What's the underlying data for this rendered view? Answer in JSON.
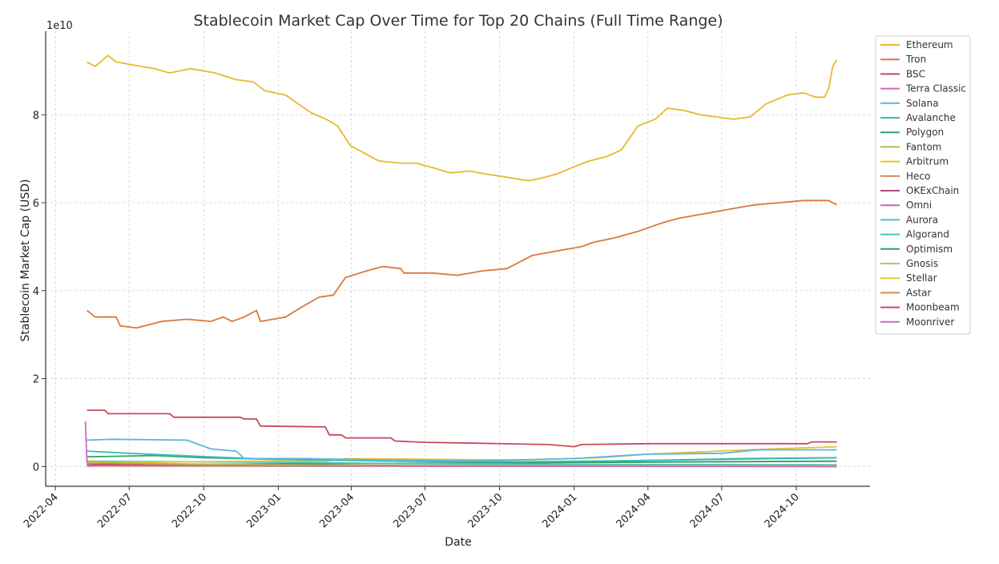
{
  "chart_data": {
    "type": "line",
    "title": "Stablecoin Market Cap Over Time for Top 20 Chains (Full Time Range)",
    "xlabel": "Date",
    "ylabel": "Stablecoin Market Cap (USD)",
    "y_offset_label": "1e10",
    "xlim": [
      "2022-03-20",
      "2024-12-31"
    ],
    "ylim": [
      -0.45,
      9.9
    ],
    "y_unit_multiplier": 10000000000.0,
    "x_ticks": [
      "2022-04",
      "2022-07",
      "2022-10",
      "2023-01",
      "2023-04",
      "2023-07",
      "2023-10",
      "2024-01",
      "2024-04",
      "2024-07",
      "2024-10"
    ],
    "y_ticks": [
      0,
      2,
      4,
      6,
      8
    ],
    "grid": true,
    "legend_position": "top-right",
    "series": [
      {
        "name": "Ethereum",
        "color": "#e8b92e",
        "points": [
          [
            "2022-05-10",
            9.2
          ],
          [
            "2022-05-20",
            9.1
          ],
          [
            "2022-06-05",
            9.35
          ],
          [
            "2022-06-15",
            9.2
          ],
          [
            "2022-07-01",
            9.15
          ],
          [
            "2022-08-01",
            9.05
          ],
          [
            "2022-08-20",
            8.95
          ],
          [
            "2022-09-15",
            9.05
          ],
          [
            "2022-10-15",
            8.95
          ],
          [
            "2022-11-10",
            8.8
          ],
          [
            "2022-12-01",
            8.75
          ],
          [
            "2022-12-15",
            8.55
          ],
          [
            "2023-01-10",
            8.45
          ],
          [
            "2023-02-10",
            8.05
          ],
          [
            "2023-03-01",
            7.9
          ],
          [
            "2023-03-15",
            7.75
          ],
          [
            "2023-03-31",
            7.3
          ],
          [
            "2023-04-15",
            7.15
          ],
          [
            "2023-05-05",
            6.95
          ],
          [
            "2023-05-31",
            6.9
          ],
          [
            "2023-06-20",
            6.9
          ],
          [
            "2023-07-10",
            6.8
          ],
          [
            "2023-08-01",
            6.68
          ],
          [
            "2023-08-25",
            6.72
          ],
          [
            "2023-09-15",
            6.65
          ],
          [
            "2023-10-10",
            6.58
          ],
          [
            "2023-11-05",
            6.5
          ],
          [
            "2023-11-20",
            6.55
          ],
          [
            "2023-12-10",
            6.65
          ],
          [
            "2024-01-05",
            6.85
          ],
          [
            "2024-01-20",
            6.95
          ],
          [
            "2024-02-10",
            7.05
          ],
          [
            "2024-02-28",
            7.2
          ],
          [
            "2024-03-20",
            7.75
          ],
          [
            "2024-04-10",
            7.9
          ],
          [
            "2024-04-25",
            8.15
          ],
          [
            "2024-05-15",
            8.1
          ],
          [
            "2024-06-05",
            8.0
          ],
          [
            "2024-06-25",
            7.95
          ],
          [
            "2024-07-15",
            7.9
          ],
          [
            "2024-08-05",
            7.95
          ],
          [
            "2024-08-25",
            8.25
          ],
          [
            "2024-09-20",
            8.45
          ],
          [
            "2024-10-10",
            8.5
          ],
          [
            "2024-10-25",
            8.4
          ],
          [
            "2024-11-05",
            8.4
          ],
          [
            "2024-11-10",
            8.6
          ],
          [
            "2024-11-15",
            9.1
          ],
          [
            "2024-11-20",
            9.25
          ]
        ]
      },
      {
        "name": "Tron",
        "color": "#d9783e",
        "points": [
          [
            "2022-05-10",
            3.55
          ],
          [
            "2022-05-20",
            3.4
          ],
          [
            "2022-06-15",
            3.4
          ],
          [
            "2022-06-20",
            3.2
          ],
          [
            "2022-07-10",
            3.15
          ],
          [
            "2022-08-10",
            3.3
          ],
          [
            "2022-09-10",
            3.35
          ],
          [
            "2022-10-10",
            3.3
          ],
          [
            "2022-10-25",
            3.4
          ],
          [
            "2022-11-05",
            3.3
          ],
          [
            "2022-11-20",
            3.4
          ],
          [
            "2022-12-05",
            3.55
          ],
          [
            "2022-12-10",
            3.3
          ],
          [
            "2023-01-10",
            3.4
          ],
          [
            "2023-02-01",
            3.65
          ],
          [
            "2023-02-20",
            3.85
          ],
          [
            "2023-03-10",
            3.9
          ],
          [
            "2023-03-25",
            4.3
          ],
          [
            "2023-04-20",
            4.45
          ],
          [
            "2023-05-10",
            4.55
          ],
          [
            "2023-06-01",
            4.5
          ],
          [
            "2023-06-05",
            4.4
          ],
          [
            "2023-07-10",
            4.4
          ],
          [
            "2023-08-10",
            4.35
          ],
          [
            "2023-09-10",
            4.45
          ],
          [
            "2023-10-10",
            4.5
          ],
          [
            "2023-11-10",
            4.8
          ],
          [
            "2023-12-10",
            4.9
          ],
          [
            "2024-01-10",
            5.0
          ],
          [
            "2024-01-25",
            5.1
          ],
          [
            "2024-02-20",
            5.2
          ],
          [
            "2024-03-20",
            5.35
          ],
          [
            "2024-04-20",
            5.55
          ],
          [
            "2024-05-10",
            5.65
          ],
          [
            "2024-06-10",
            5.75
          ],
          [
            "2024-07-10",
            5.85
          ],
          [
            "2024-08-10",
            5.95
          ],
          [
            "2024-09-10",
            6.0
          ],
          [
            "2024-10-10",
            6.05
          ],
          [
            "2024-11-10",
            6.05
          ],
          [
            "2024-11-20",
            5.95
          ]
        ]
      },
      {
        "name": "BSC",
        "color": "#c94a5a",
        "points": [
          [
            "2022-05-10",
            1.28
          ],
          [
            "2022-06-01",
            1.28
          ],
          [
            "2022-06-05",
            1.2
          ],
          [
            "2022-08-20",
            1.2
          ],
          [
            "2022-08-25",
            1.12
          ],
          [
            "2022-11-15",
            1.12
          ],
          [
            "2022-11-20",
            1.08
          ],
          [
            "2022-12-05",
            1.08
          ],
          [
            "2022-12-10",
            0.92
          ],
          [
            "2023-02-28",
            0.9
          ],
          [
            "2023-03-05",
            0.72
          ],
          [
            "2023-03-20",
            0.72
          ],
          [
            "2023-03-25",
            0.65
          ],
          [
            "2023-05-20",
            0.65
          ],
          [
            "2023-05-25",
            0.58
          ],
          [
            "2023-07-01",
            0.55
          ],
          [
            "2023-09-01",
            0.53
          ],
          [
            "2023-12-01",
            0.5
          ],
          [
            "2024-01-01",
            0.45
          ],
          [
            "2024-01-10",
            0.5
          ],
          [
            "2024-04-01",
            0.52
          ],
          [
            "2024-07-01",
            0.52
          ],
          [
            "2024-10-15",
            0.52
          ],
          [
            "2024-10-20",
            0.56
          ],
          [
            "2024-11-20",
            0.56
          ]
        ]
      },
      {
        "name": "Terra Classic",
        "color": "#d068c8",
        "points": [
          [
            "2022-05-08",
            1.02
          ],
          [
            "2022-05-09",
            0.55
          ],
          [
            "2022-05-10",
            0.1
          ],
          [
            "2022-05-15",
            0.02
          ],
          [
            "2024-11-20",
            0.0
          ]
        ]
      },
      {
        "name": "Solana",
        "color": "#58b8e0",
        "points": [
          [
            "2022-05-10",
            0.6
          ],
          [
            "2022-06-10",
            0.62
          ],
          [
            "2022-09-10",
            0.6
          ],
          [
            "2022-10-10",
            0.4
          ],
          [
            "2022-11-10",
            0.35
          ],
          [
            "2022-11-20",
            0.18
          ],
          [
            "2023-02-01",
            0.18
          ],
          [
            "2023-05-01",
            0.15
          ],
          [
            "2023-09-01",
            0.13
          ],
          [
            "2024-01-01",
            0.18
          ],
          [
            "2024-04-01",
            0.28
          ],
          [
            "2024-07-01",
            0.3
          ],
          [
            "2024-08-15",
            0.38
          ],
          [
            "2024-11-20",
            0.38
          ]
        ]
      },
      {
        "name": "Avalanche",
        "color": "#3cbcb4",
        "points": [
          [
            "2022-05-10",
            0.35
          ],
          [
            "2022-07-01",
            0.3
          ],
          [
            "2022-11-01",
            0.2
          ],
          [
            "2023-01-01",
            0.16
          ],
          [
            "2023-06-01",
            0.12
          ],
          [
            "2023-11-01",
            0.11
          ],
          [
            "2024-03-01",
            0.13
          ],
          [
            "2024-08-01",
            0.17
          ],
          [
            "2024-11-20",
            0.2
          ]
        ]
      },
      {
        "name": "Polygon",
        "color": "#2ea86c",
        "points": [
          [
            "2022-05-10",
            0.22
          ],
          [
            "2022-08-01",
            0.25
          ],
          [
            "2022-10-01",
            0.2
          ],
          [
            "2023-01-01",
            0.16
          ],
          [
            "2023-03-01",
            0.15
          ],
          [
            "2023-06-01",
            0.12
          ],
          [
            "2023-10-01",
            0.1
          ],
          [
            "2024-01-01",
            0.11
          ],
          [
            "2024-05-01",
            0.15
          ],
          [
            "2024-08-01",
            0.18
          ],
          [
            "2024-11-20",
            0.2
          ]
        ]
      },
      {
        "name": "Fantom",
        "color": "#a3c440",
        "points": [
          [
            "2022-05-10",
            0.12
          ],
          [
            "2022-07-01",
            0.08
          ],
          [
            "2022-10-01",
            0.05
          ],
          [
            "2023-03-01",
            0.03
          ],
          [
            "2024-11-20",
            0.02
          ]
        ]
      },
      {
        "name": "Arbitrum",
        "color": "#e8c22e",
        "points": [
          [
            "2022-05-10",
            0.1
          ],
          [
            "2022-08-01",
            0.1
          ],
          [
            "2022-12-01",
            0.12
          ],
          [
            "2023-03-01",
            0.12
          ],
          [
            "2023-03-25",
            0.18
          ],
          [
            "2023-08-01",
            0.16
          ],
          [
            "2023-11-01",
            0.15
          ],
          [
            "2024-02-01",
            0.2
          ],
          [
            "2024-04-01",
            0.28
          ],
          [
            "2024-08-01",
            0.38
          ],
          [
            "2024-11-20",
            0.45
          ]
        ]
      },
      {
        "name": "Heco",
        "color": "#c98a5a",
        "points": [
          [
            "2022-05-10",
            0.08
          ],
          [
            "2022-08-01",
            0.06
          ],
          [
            "2023-01-01",
            0.04
          ],
          [
            "2023-06-01",
            0.02
          ],
          [
            "2024-11-20",
            0.01
          ]
        ]
      },
      {
        "name": "OKExChain",
        "color": "#b04a7a",
        "points": [
          [
            "2022-05-10",
            0.05
          ],
          [
            "2022-10-01",
            0.04
          ],
          [
            "2023-06-01",
            0.02
          ],
          [
            "2024-11-20",
            0.01
          ]
        ]
      },
      {
        "name": "Omni",
        "color": "#c860c0",
        "points": [
          [
            "2022-05-10",
            0.02
          ],
          [
            "2024-11-20",
            0.01
          ]
        ]
      },
      {
        "name": "Aurora",
        "color": "#5ab4e0",
        "points": [
          [
            "2022-05-10",
            0.03
          ],
          [
            "2023-01-01",
            0.02
          ],
          [
            "2024-11-20",
            0.01
          ]
        ]
      },
      {
        "name": "Algorand",
        "color": "#48c4c0",
        "points": [
          [
            "2022-05-10",
            0.12
          ],
          [
            "2022-12-01",
            0.1
          ],
          [
            "2023-06-01",
            0.07
          ],
          [
            "2024-01-01",
            0.05
          ],
          [
            "2024-11-20",
            0.04
          ]
        ]
      },
      {
        "name": "Optimism",
        "color": "#2e9c68",
        "points": [
          [
            "2022-05-10",
            0.02
          ],
          [
            "2022-10-01",
            0.05
          ],
          [
            "2023-04-01",
            0.07
          ],
          [
            "2023-10-01",
            0.08
          ],
          [
            "2024-04-01",
            0.1
          ],
          [
            "2024-11-20",
            0.12
          ]
        ]
      },
      {
        "name": "Gnosis",
        "color": "#b4c850",
        "points": [
          [
            "2022-05-10",
            0.04
          ],
          [
            "2023-01-01",
            0.03
          ],
          [
            "2024-11-20",
            0.02
          ]
        ]
      },
      {
        "name": "Stellar",
        "color": "#ecc63a",
        "points": [
          [
            "2022-05-10",
            0.01
          ],
          [
            "2024-11-20",
            0.01
          ]
        ]
      },
      {
        "name": "Astar",
        "color": "#d98a4e",
        "points": [
          [
            "2022-05-10",
            0.01
          ],
          [
            "2024-11-20",
            0.0
          ]
        ]
      },
      {
        "name": "Moonbeam",
        "color": "#c84a5e",
        "points": [
          [
            "2022-05-10",
            0.03
          ],
          [
            "2023-01-01",
            0.02
          ],
          [
            "2024-11-20",
            0.01
          ]
        ]
      },
      {
        "name": "Moonriver",
        "color": "#c86ac8",
        "points": [
          [
            "2022-05-10",
            0.02
          ],
          [
            "2024-11-20",
            0.0
          ]
        ]
      }
    ]
  }
}
